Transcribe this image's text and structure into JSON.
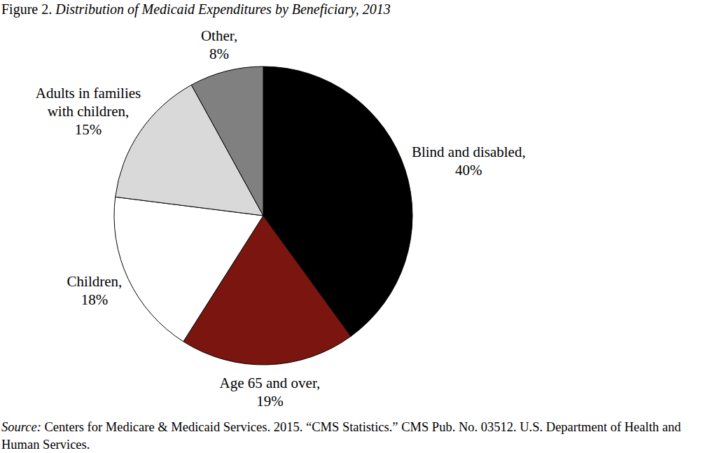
{
  "chart_data": {
    "type": "pie",
    "title": "Figure 2. Distribution of Medicaid Expenditures by Beneficiary, 2013",
    "categories": [
      "Blind and disabled,",
      "Age 65 and over,",
      "Children,",
      "Adults in families with children,",
      "Other,"
    ],
    "values": [
      40,
      19,
      18,
      15,
      8
    ],
    "value_labels": [
      "40%",
      "19%",
      "18%",
      "15%",
      "8%"
    ],
    "colors": [
      "#000000",
      "#7a1510",
      "#ffffff",
      "#d9d9d9",
      "#808080"
    ],
    "data_labels": true,
    "source": {
      "label": "Source:",
      "text": "Centers for Medicare & Medicaid Services. 2015. “CMS Statistics.” CMS Pub. No. 03512. U.S. Department of Health and Human Services."
    }
  }
}
